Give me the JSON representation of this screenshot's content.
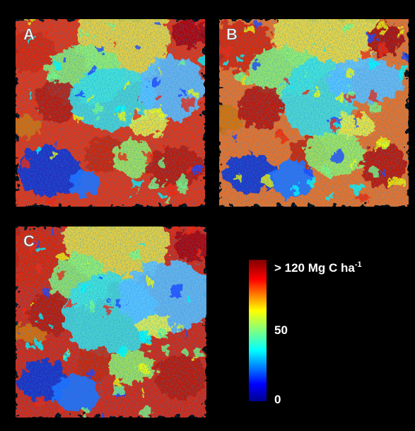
{
  "panels": [
    {
      "label": "A"
    },
    {
      "label": "B"
    },
    {
      "label": "C"
    }
  ],
  "colorbar": {
    "top_label": "> 120 Mg C ha",
    "top_label_superscript": "-1",
    "middle_label": "50",
    "bottom_label": "0"
  }
}
